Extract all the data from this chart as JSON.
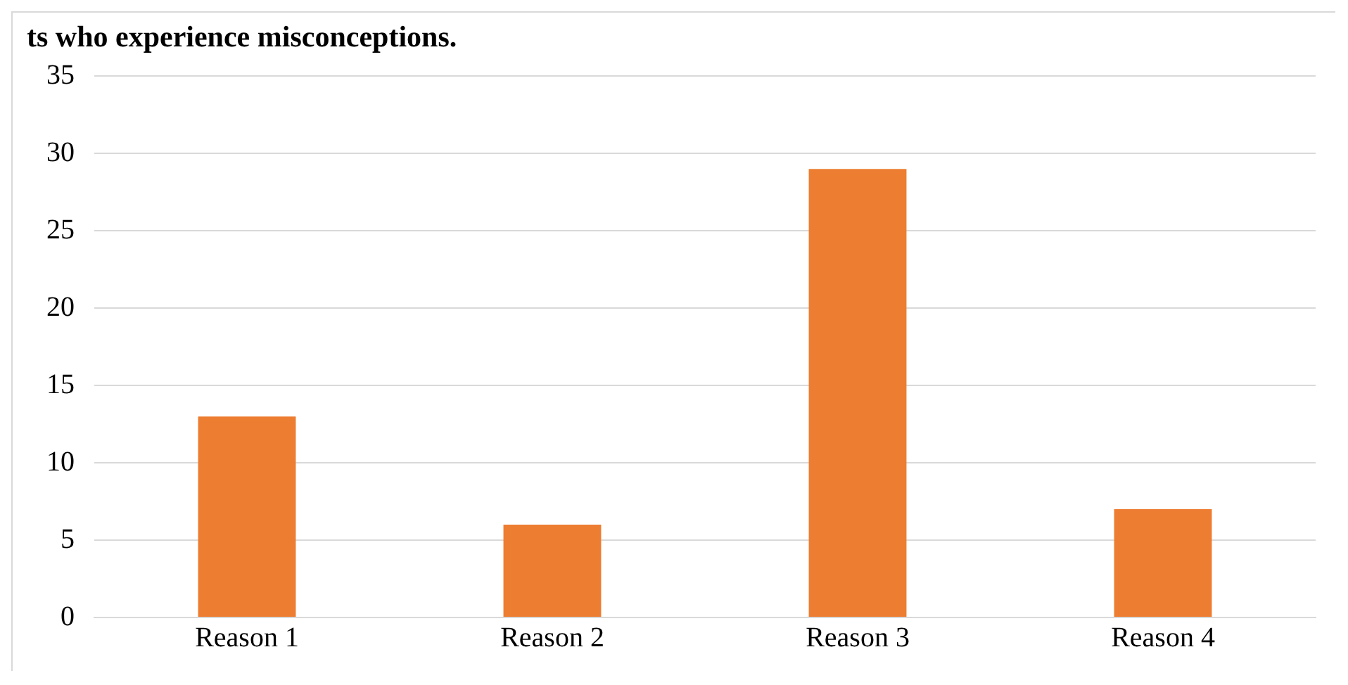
{
  "chart_data": {
    "type": "bar",
    "title": "ts who experience misconceptions.",
    "categories": [
      "Reason 1",
      "Reason 2",
      "Reason 3",
      "Reason 4"
    ],
    "values": [
      13,
      6,
      29,
      7
    ],
    "color": "#ed7d31",
    "ylim": [
      0,
      35
    ],
    "yticks": [
      0,
      5,
      10,
      15,
      20,
      25,
      30,
      35
    ],
    "grid": "y"
  }
}
